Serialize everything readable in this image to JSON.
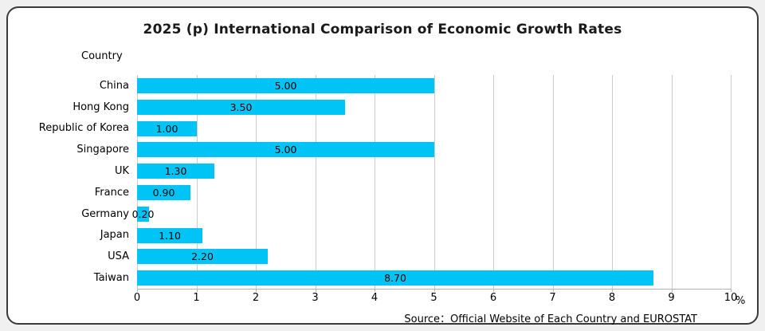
{
  "title": "2025 (p) International Comparison of Economic Growth Rates",
  "country_label": "Country",
  "percent_label": "%",
  "source": "Source：Official Website of Each Country and EUROSTAT",
  "accent_color": "#00C4F5",
  "chart_data": {
    "type": "bar",
    "orientation": "horizontal",
    "title": "2025 (p) International Comparison of Economic Growth Rates",
    "ylabel": "Country",
    "xlabel": "%",
    "categories": [
      "China",
      "Hong Kong",
      "Republic of Korea",
      "Singapore",
      "UK",
      "France",
      "Germany",
      "Japan",
      "USA",
      "Taiwan"
    ],
    "values": [
      5.0,
      3.5,
      1.0,
      5.0,
      1.3,
      0.9,
      0.2,
      1.1,
      2.2,
      8.7
    ],
    "value_labels": [
      "5.00",
      "3.50",
      "1.00",
      "5.00",
      "1.30",
      "0.90",
      "0.20",
      "1.10",
      "2.20",
      "8.70"
    ],
    "xlim": [
      0,
      10
    ],
    "xticks": [
      0,
      1,
      2,
      3,
      4,
      5,
      6,
      7,
      8,
      9,
      10
    ],
    "grid": true,
    "legend": false,
    "bar_color": "#00C4F5",
    "source": "Source：Official Website of Each Country and EUROSTAT"
  }
}
